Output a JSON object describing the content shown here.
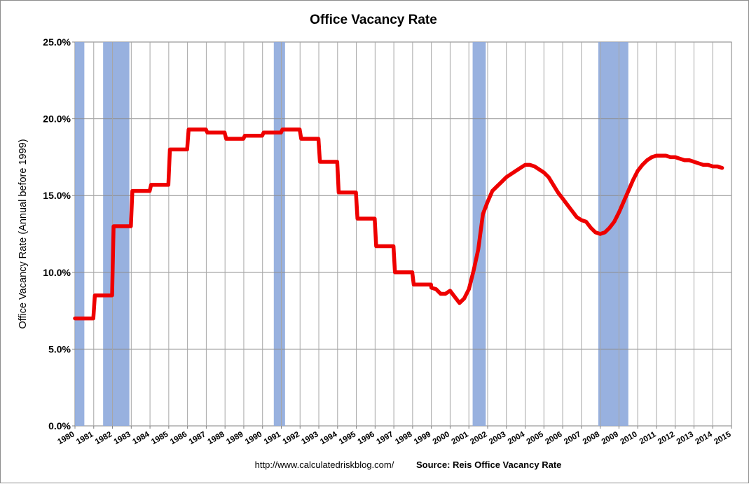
{
  "chart_data": {
    "type": "line",
    "title": "Office Vacancy Rate",
    "ylabel": "Office Vacancy Rate (Annual before 1999)",
    "xlabel": "",
    "ylim": [
      0,
      25
    ],
    "xlim": [
      1980,
      2015
    ],
    "y_ticks": [
      "0.0%",
      "5.0%",
      "10.0%",
      "15.0%",
      "20.0%",
      "25.0%"
    ],
    "y_tick_values": [
      0,
      5,
      10,
      15,
      20,
      25
    ],
    "x_ticks": [
      "1980",
      "1981",
      "1982",
      "1983",
      "1984",
      "1985",
      "1986",
      "1987",
      "1988",
      "1989",
      "1990",
      "1991",
      "1992",
      "1993",
      "1994",
      "1995",
      "1996",
      "1997",
      "1998",
      "1999",
      "2000",
      "2001",
      "2002",
      "2003",
      "2004",
      "2005",
      "2006",
      "2007",
      "2008",
      "2009",
      "2010",
      "2011",
      "2012",
      "2013",
      "2014",
      "2015"
    ],
    "grid": true,
    "recessions": [
      {
        "start": 1980.0,
        "end": 1980.5
      },
      {
        "start": 1981.5,
        "end": 1982.9
      },
      {
        "start": 1990.6,
        "end": 1991.2
      },
      {
        "start": 2001.2,
        "end": 2001.9
      },
      {
        "start": 2007.9,
        "end": 2009.5
      }
    ],
    "series": [
      {
        "color": "#ee0000",
        "annual": [
          {
            "year": 1980,
            "value": 7.0
          },
          {
            "year": 1981,
            "value": 8.5
          },
          {
            "year": 1982,
            "value": 13.0
          },
          {
            "year": 1983,
            "value": 15.3
          },
          {
            "year": 1984,
            "value": 15.7
          },
          {
            "year": 1985,
            "value": 18.0
          },
          {
            "year": 1986,
            "value": 19.3
          },
          {
            "year": 1987,
            "value": 19.1
          },
          {
            "year": 1988,
            "value": 18.7
          },
          {
            "year": 1989,
            "value": 18.9
          },
          {
            "year": 1990,
            "value": 19.1
          },
          {
            "year": 1991,
            "value": 19.3
          },
          {
            "year": 1992,
            "value": 18.7
          },
          {
            "year": 1993,
            "value": 17.2
          },
          {
            "year": 1994,
            "value": 15.2
          },
          {
            "year": 1995,
            "value": 13.5
          },
          {
            "year": 1996,
            "value": 11.7
          },
          {
            "year": 1997,
            "value": 10.0
          },
          {
            "year": 1998,
            "value": 9.2
          }
        ],
        "quarterly": [
          [
            1999.0,
            9.0
          ],
          [
            1999.25,
            8.9
          ],
          [
            1999.5,
            8.6
          ],
          [
            1999.75,
            8.6
          ],
          [
            2000.0,
            8.8
          ],
          [
            2000.25,
            8.4
          ],
          [
            2000.5,
            8.0
          ],
          [
            2000.75,
            8.3
          ],
          [
            2001.0,
            8.9
          ],
          [
            2001.25,
            10.1
          ],
          [
            2001.5,
            11.5
          ],
          [
            2001.75,
            13.8
          ],
          [
            2002.0,
            14.6
          ],
          [
            2002.25,
            15.3
          ],
          [
            2002.5,
            15.6
          ],
          [
            2002.75,
            15.9
          ],
          [
            2003.0,
            16.2
          ],
          [
            2003.25,
            16.4
          ],
          [
            2003.5,
            16.6
          ],
          [
            2003.75,
            16.8
          ],
          [
            2004.0,
            17.0
          ],
          [
            2004.25,
            17.0
          ],
          [
            2004.5,
            16.9
          ],
          [
            2004.75,
            16.7
          ],
          [
            2005.0,
            16.5
          ],
          [
            2005.25,
            16.2
          ],
          [
            2005.5,
            15.7
          ],
          [
            2005.75,
            15.2
          ],
          [
            2006.0,
            14.8
          ],
          [
            2006.25,
            14.4
          ],
          [
            2006.5,
            14.0
          ],
          [
            2006.75,
            13.6
          ],
          [
            2007.0,
            13.4
          ],
          [
            2007.25,
            13.3
          ],
          [
            2007.5,
            12.9
          ],
          [
            2007.75,
            12.6
          ],
          [
            2008.0,
            12.5
          ],
          [
            2008.25,
            12.6
          ],
          [
            2008.5,
            12.9
          ],
          [
            2008.75,
            13.3
          ],
          [
            2009.0,
            13.9
          ],
          [
            2009.25,
            14.6
          ],
          [
            2009.5,
            15.3
          ],
          [
            2009.75,
            16.0
          ],
          [
            2010.0,
            16.6
          ],
          [
            2010.25,
            17.0
          ],
          [
            2010.5,
            17.3
          ],
          [
            2010.75,
            17.5
          ],
          [
            2011.0,
            17.6
          ],
          [
            2011.25,
            17.6
          ],
          [
            2011.5,
            17.6
          ],
          [
            2011.75,
            17.5
          ],
          [
            2012.0,
            17.5
          ],
          [
            2012.25,
            17.4
          ],
          [
            2012.5,
            17.3
          ],
          [
            2012.75,
            17.3
          ],
          [
            2013.0,
            17.2
          ],
          [
            2013.25,
            17.1
          ],
          [
            2013.5,
            17.0
          ],
          [
            2013.75,
            17.0
          ],
          [
            2014.0,
            16.9
          ],
          [
            2014.25,
            16.9
          ],
          [
            2014.5,
            16.8
          ]
        ]
      }
    ],
    "source_url": "http://www.calculatedriskblog.com/",
    "source_text": "Source: Reis Office Vacancy Rate"
  }
}
